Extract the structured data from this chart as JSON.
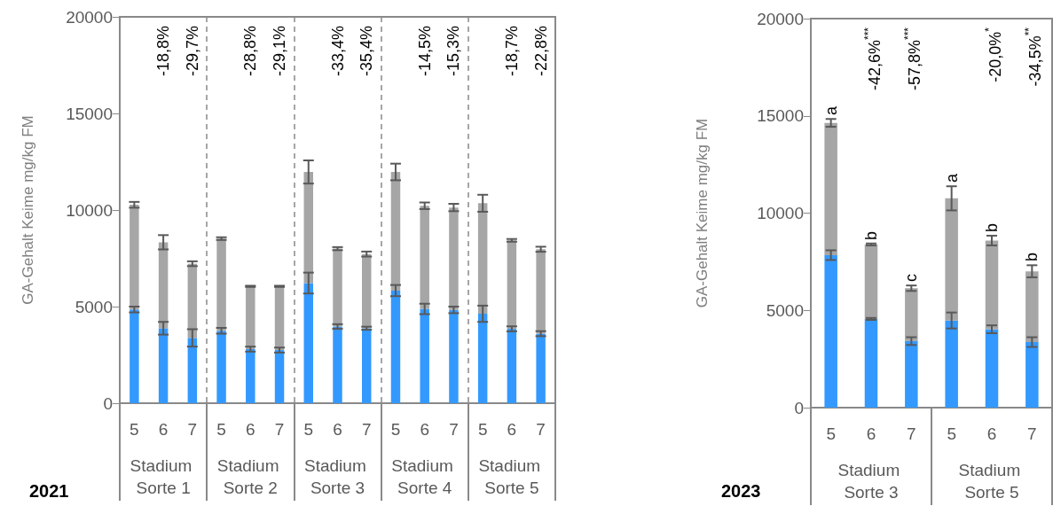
{
  "chart_data": [
    {
      "type": "bar",
      "title": "2021",
      "ylabel": "GA-Gehalt Keime mg/kg FM",
      "stacked": true,
      "ylim": [
        0,
        20000
      ],
      "yticks": [
        0,
        5000,
        10000,
        15000,
        20000
      ],
      "categories": [
        "5",
        "6",
        "7",
        "5",
        "6",
        "7",
        "5",
        "6",
        "7",
        "5",
        "6",
        "7",
        "5",
        "6",
        "7"
      ],
      "annotations": [
        "Stadium Sorte 1",
        "Stadium Sorte 2",
        "Stadium Sorte 3",
        "Stadium Sorte 4",
        "Stadium Sorte 5",
        "-18,8%",
        "-29,7%",
        "-28,8%",
        "-29,1%",
        "-33,4%",
        "-35,4%",
        "-14,5%",
        "-15,3%",
        "-18,7%",
        "-22,8%"
      ],
      "series": [
        {
          "color": "#3399ff",
          "values": [
            4850,
            3880,
            3380,
            3750,
            2800,
            2750,
            6220,
            3970,
            3880,
            5830,
            4880,
            4830,
            4630,
            3850,
            3600
          ],
          "errors": [
            150,
            330,
            450,
            150,
            130,
            130,
            540,
            120,
            80,
            290,
            270,
            170,
            420,
            130,
            130
          ]
        },
        {
          "color": "#a6a6a6",
          "values": [
            5420,
            4450,
            3840,
            4770,
            3250,
            3300,
            5750,
            4030,
            3840,
            6140,
            5340,
            5300,
            5720,
            4580,
            4370
          ],
          "errors": [
            150,
            370,
            125,
            70,
            30,
            30,
            600,
            80,
            130,
            430,
            170,
            190,
            440,
            70,
            130
          ]
        }
      ]
    },
    {
      "type": "bar",
      "title": "2023",
      "ylabel": "GA-Gehalt Keime mg/kg FM",
      "stacked": true,
      "ylim": [
        0,
        20000
      ],
      "yticks": [
        0,
        5000,
        10000,
        15000,
        20000
      ],
      "categories": [
        "5",
        "6",
        "7",
        "5",
        "6",
        "7"
      ],
      "annotations": [
        "Stadium Sorte 3",
        "Stadium Sorte 5",
        "a",
        "b",
        "c",
        "a",
        "b",
        "b",
        "-42,6%$^{***}$",
        "-57,8%$^{***}$",
        "-20,0%$^{*}$",
        "-34,5%$^{**}$"
      ],
      "series": [
        {
          "color": "#3399ff",
          "values": [
            7840,
            4560,
            3420,
            4480,
            4030,
            3370
          ],
          "errors": [
            250,
            50,
            200,
            410,
            200,
            250
          ]
        },
        {
          "color": "#a6a6a6",
          "values": [
            6800,
            3830,
            2720,
            6280,
            4560,
            3640
          ],
          "errors": [
            200,
            50,
            140,
            620,
            250,
            310
          ]
        }
      ]
    }
  ]
}
